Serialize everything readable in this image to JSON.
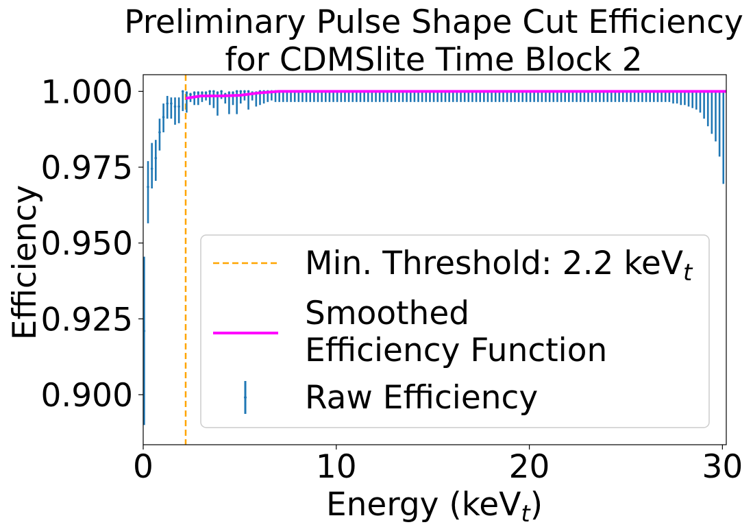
{
  "chart_data": {
    "type": "scatter",
    "title_line1": "Preliminary Pulse Shape Cut Efficiency",
    "title_line2": "for CDMSlite Time Block 2",
    "xlabel": "Energy (keV",
    "xlabel_sub": "t",
    "xlabel_end": ")",
    "ylabel": "Efficiency",
    "xlim": [
      0,
      30.2
    ],
    "ylim": [
      0.8835,
      1.0055
    ],
    "xticks": [
      0,
      10,
      20,
      30
    ],
    "xtick_labels": [
      "0",
      "10",
      "20",
      "30"
    ],
    "yticks": [
      0.9,
      0.925,
      0.95,
      0.975,
      1.0
    ],
    "ytick_labels": [
      "0.900",
      "0.925",
      "0.950",
      "0.975",
      "1.000"
    ],
    "grid": false,
    "legend_position": "center-right",
    "threshold": {
      "name": "Min. Threshold: 2.2 keV",
      "name_sub": "t",
      "x": 2.2,
      "color": "#ffa500"
    },
    "smoothed": {
      "name_line1": "Smoothed",
      "name_line2": "Efficiency Function",
      "color": "#ff00ff",
      "x": [
        2.2,
        3.0,
        4.0,
        5.0,
        6.0,
        7.0,
        8.0,
        30.2
      ],
      "y": [
        0.9977,
        0.9985,
        0.9985,
        0.9987,
        0.9995,
        1.0,
        1.0,
        1.0
      ]
    },
    "raw": {
      "name": "Raw Efficiency",
      "color": "#1f77b4",
      "points": [
        {
          "x": 0.05,
          "y": 0.921,
          "lo": 0.89,
          "hi": 0.9455
        },
        {
          "x": 0.25,
          "y": 0.9685,
          "lo": 0.9565,
          "hi": 0.977
        },
        {
          "x": 0.45,
          "y": 0.9745,
          "lo": 0.968,
          "hi": 0.983
        },
        {
          "x": 0.65,
          "y": 0.978,
          "lo": 0.9705,
          "hi": 0.984
        },
        {
          "x": 0.85,
          "y": 0.9865,
          "lo": 0.9805,
          "hi": 0.991
        },
        {
          "x": 1.05,
          "y": 0.9915,
          "lo": 0.9865,
          "hi": 0.996
        },
        {
          "x": 1.25,
          "y": 0.996,
          "lo": 0.991,
          "hi": 0.9985
        },
        {
          "x": 1.45,
          "y": 0.996,
          "lo": 0.991,
          "hi": 0.998
        },
        {
          "x": 1.65,
          "y": 0.995,
          "lo": 0.989,
          "hi": 0.998
        },
        {
          "x": 1.85,
          "y": 0.995,
          "lo": 0.9895,
          "hi": 0.998
        },
        {
          "x": 2.05,
          "y": 1.0,
          "lo": 0.9935,
          "hi": 1.0
        },
        {
          "x": 2.25,
          "y": 0.9995,
          "lo": 0.993,
          "hi": 1.0
        },
        {
          "x": 2.45,
          "y": 0.999,
          "lo": 0.9965,
          "hi": 0.9995
        },
        {
          "x": 2.65,
          "y": 0.9995,
          "lo": 0.9955,
          "hi": 1.0
        },
        {
          "x": 2.85,
          "y": 0.9995,
          "lo": 0.9955,
          "hi": 1.0
        },
        {
          "x": 3.05,
          "y": 0.9995,
          "lo": 0.9965,
          "hi": 1.0
        },
        {
          "x": 3.25,
          "y": 0.9995,
          "lo": 0.997,
          "hi": 1.0
        },
        {
          "x": 3.45,
          "y": 1.0,
          "lo": 0.9955,
          "hi": 1.0
        },
        {
          "x": 3.65,
          "y": 1.0,
          "lo": 0.9945,
          "hi": 1.0
        },
        {
          "x": 3.85,
          "y": 0.9995,
          "lo": 0.992,
          "hi": 1.0
        },
        {
          "x": 4.05,
          "y": 1.0,
          "lo": 0.9975,
          "hi": 1.0
        },
        {
          "x": 4.25,
          "y": 0.999,
          "lo": 0.996,
          "hi": 0.9995
        },
        {
          "x": 4.45,
          "y": 0.9995,
          "lo": 0.9925,
          "hi": 1.0
        },
        {
          "x": 4.65,
          "y": 0.9995,
          "lo": 0.9955,
          "hi": 1.0
        },
        {
          "x": 4.85,
          "y": 1.0,
          "lo": 0.9925,
          "hi": 1.0
        },
        {
          "x": 5.05,
          "y": 1.0,
          "lo": 0.996,
          "hi": 1.0
        },
        {
          "x": 5.25,
          "y": 1.0,
          "lo": 0.997,
          "hi": 1.0
        },
        {
          "x": 5.45,
          "y": 1.0,
          "lo": 0.994,
          "hi": 1.0
        },
        {
          "x": 5.65,
          "y": 0.9995,
          "lo": 0.997,
          "hi": 1.0
        },
        {
          "x": 5.85,
          "y": 0.9995,
          "lo": 0.995,
          "hi": 1.0
        },
        {
          "x": 6.05,
          "y": 1.0,
          "lo": 0.9955,
          "hi": 1.0
        },
        {
          "x": 6.25,
          "y": 1.0,
          "lo": 0.996,
          "hi": 1.0
        },
        {
          "x": 6.45,
          "y": 1.0,
          "lo": 0.9965,
          "hi": 1.0
        },
        {
          "x": 6.65,
          "y": 1.0,
          "lo": 0.997,
          "hi": 1.0
        },
        {
          "x": 6.85,
          "y": 1.0,
          "lo": 0.9965,
          "hi": 1.0
        }
      ],
      "mid_x_start": 7.05,
      "mid_x_end": 26.85,
      "mid_x_step": 0.2,
      "mid_y": 1.0,
      "mid_lo": 0.9965,
      "tail": [
        {
          "x": 27.05,
          "y": 1.0,
          "lo": 0.9965,
          "hi": 1.0
        },
        {
          "x": 27.25,
          "y": 1.0,
          "lo": 0.9965,
          "hi": 1.0
        },
        {
          "x": 27.45,
          "y": 1.0,
          "lo": 0.996,
          "hi": 1.0
        },
        {
          "x": 27.65,
          "y": 1.0,
          "lo": 0.996,
          "hi": 1.0
        },
        {
          "x": 27.85,
          "y": 1.0,
          "lo": 0.9955,
          "hi": 1.0
        },
        {
          "x": 28.05,
          "y": 1.0,
          "lo": 0.9955,
          "hi": 1.0
        },
        {
          "x": 28.25,
          "y": 1.0,
          "lo": 0.995,
          "hi": 1.0
        },
        {
          "x": 28.45,
          "y": 1.0,
          "lo": 0.9945,
          "hi": 1.0
        },
        {
          "x": 28.65,
          "y": 1.0,
          "lo": 0.994,
          "hi": 1.0
        },
        {
          "x": 28.85,
          "y": 1.0,
          "lo": 0.993,
          "hi": 1.0
        },
        {
          "x": 29.05,
          "y": 1.0,
          "lo": 0.991,
          "hi": 1.0
        },
        {
          "x": 29.25,
          "y": 1.0,
          "lo": 0.9885,
          "hi": 1.0
        },
        {
          "x": 29.45,
          "y": 1.0,
          "lo": 0.986,
          "hi": 1.0
        },
        {
          "x": 29.65,
          "y": 1.0,
          "lo": 0.9835,
          "hi": 1.0
        },
        {
          "x": 29.85,
          "y": 1.0,
          "lo": 0.9785,
          "hi": 1.0
        },
        {
          "x": 30.05,
          "y": 1.0,
          "lo": 0.9695,
          "hi": 1.0
        }
      ]
    }
  }
}
